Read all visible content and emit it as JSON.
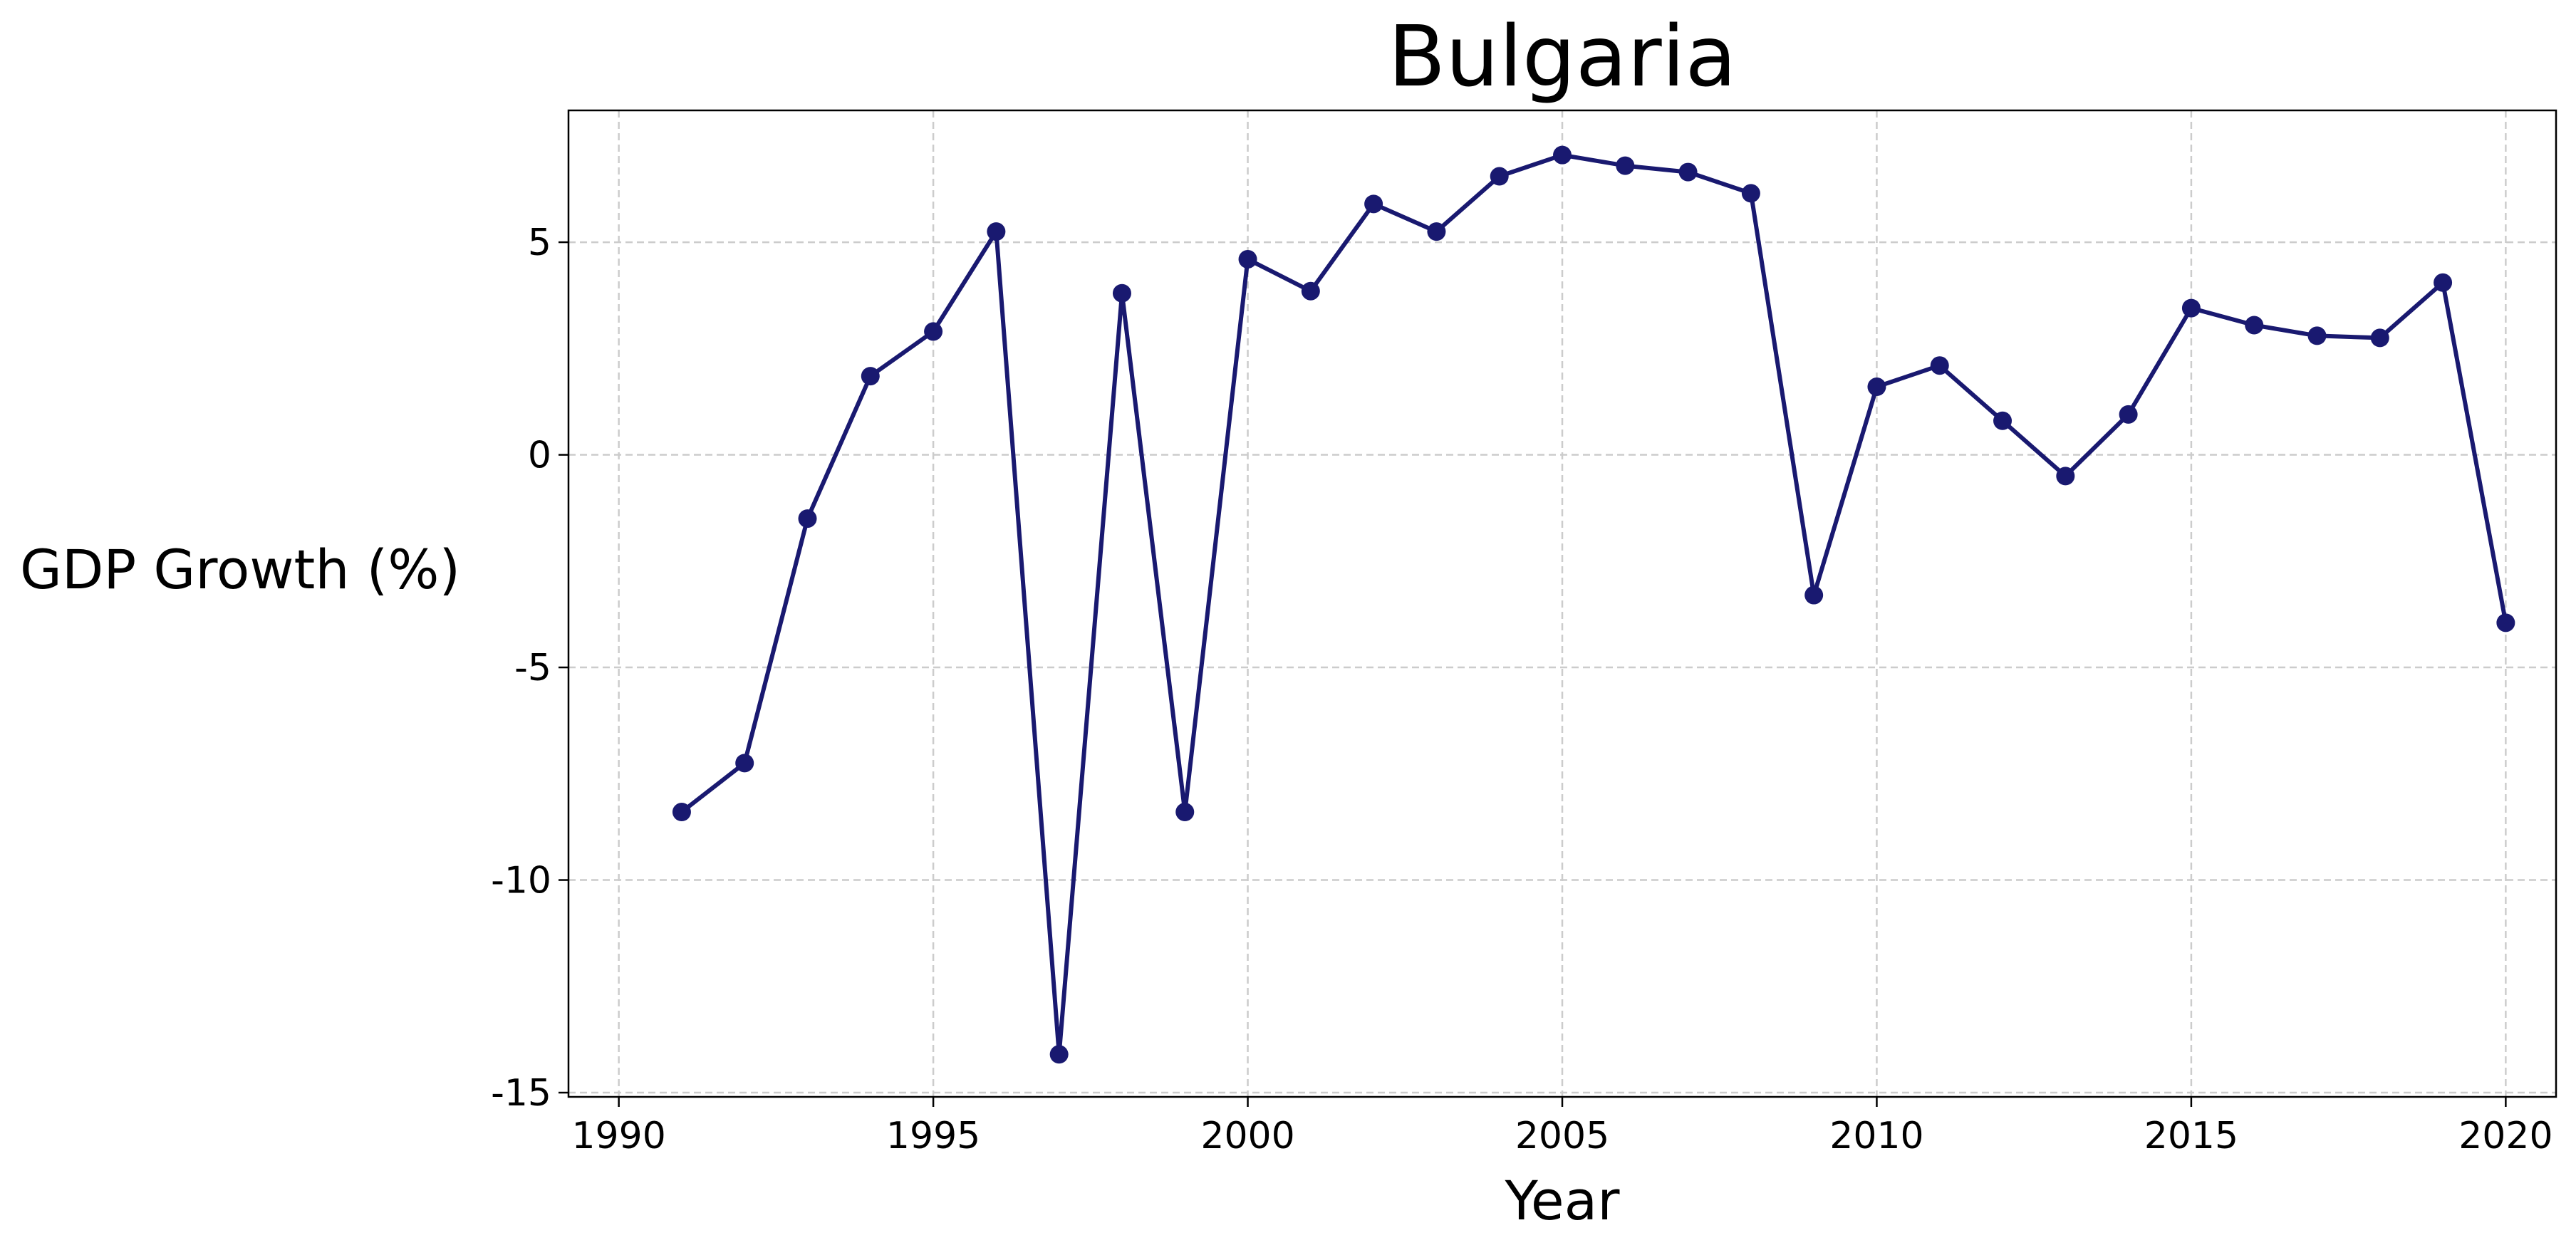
{
  "chart_data": {
    "type": "line",
    "title": "Bulgaria",
    "xlabel": "Year",
    "ylabel": "GDP Growth (%)",
    "xlim": [
      1989.2,
      2020.8
    ],
    "ylim": [
      -15.1,
      8.1
    ],
    "xticks": [
      1990,
      1995,
      2000,
      2005,
      2010,
      2015,
      2020
    ],
    "yticks": [
      -15,
      -10,
      -5,
      0,
      5
    ],
    "grid": true,
    "legend": "none",
    "line_color": "#191970",
    "series": [
      {
        "x": [
          1991,
          1992,
          1993,
          1994,
          1995,
          1996,
          1997,
          1998,
          1999,
          2000,
          2001,
          2002,
          2003,
          2004,
          2005,
          2006,
          2007,
          2008,
          2009,
          2010,
          2011,
          2012,
          2013,
          2014,
          2015,
          2016,
          2017,
          2018,
          2019,
          2020
        ],
        "values": [
          -8.4,
          -7.25,
          -1.5,
          1.85,
          2.9,
          5.25,
          -14.1,
          3.8,
          -8.4,
          4.6,
          3.85,
          5.9,
          5.25,
          6.55,
          7.05,
          6.8,
          6.65,
          6.15,
          -3.3,
          1.6,
          2.1,
          0.8,
          -0.5,
          0.95,
          3.45,
          3.05,
          2.8,
          2.75,
          4.05,
          -3.95
        ]
      }
    ]
  }
}
